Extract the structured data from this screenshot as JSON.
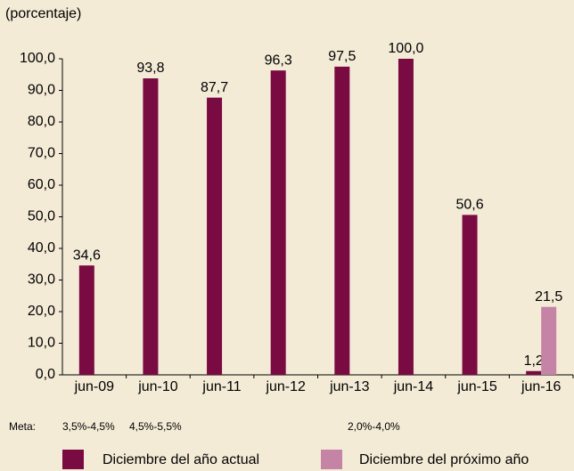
{
  "chart_data": {
    "type": "bar",
    "ylabel": "(porcentaje)",
    "categories": [
      "jun-09",
      "jun-10",
      "jun-11",
      "jun-12",
      "jun-13",
      "jun-14",
      "jun-15",
      "jun-16"
    ],
    "series": [
      {
        "name": "Diciembre del año actual",
        "color": "#7a0a42",
        "values": [
          34.6,
          93.8,
          87.7,
          96.3,
          97.5,
          100.0,
          50.6,
          1.2
        ],
        "value_labels": [
          "34,6",
          "93,8",
          "87,7",
          "96,3",
          "97,5",
          "100,0",
          "50,6",
          "1,2"
        ]
      },
      {
        "name": "Diciembre del próximo año",
        "color": "#c583a6",
        "values": [
          null,
          null,
          null,
          null,
          null,
          null,
          null,
          21.5
        ],
        "value_labels": [
          null,
          null,
          null,
          null,
          null,
          null,
          null,
          "21,5"
        ]
      }
    ],
    "ylim": [
      0,
      100
    ],
    "yticks": [
      {
        "value": 0,
        "label": "0,0"
      },
      {
        "value": 10,
        "label": "10,0"
      },
      {
        "value": 20,
        "label": "20,0"
      },
      {
        "value": 30,
        "label": "30,0"
      },
      {
        "value": 40,
        "label": "40,0"
      },
      {
        "value": 50,
        "label": "50,0"
      },
      {
        "value": 60,
        "label": "60,0"
      },
      {
        "value": 70,
        "label": "70,0"
      },
      {
        "value": 80,
        "label": "80,0"
      },
      {
        "value": 90,
        "label": "90,0"
      },
      {
        "value": 100,
        "label": "100,0"
      }
    ],
    "meta": {
      "label": "Meta:",
      "items": [
        "3,5%-4,5%",
        "4,5%-5,5%",
        "2,0%-4,0%"
      ]
    },
    "grid": false
  }
}
